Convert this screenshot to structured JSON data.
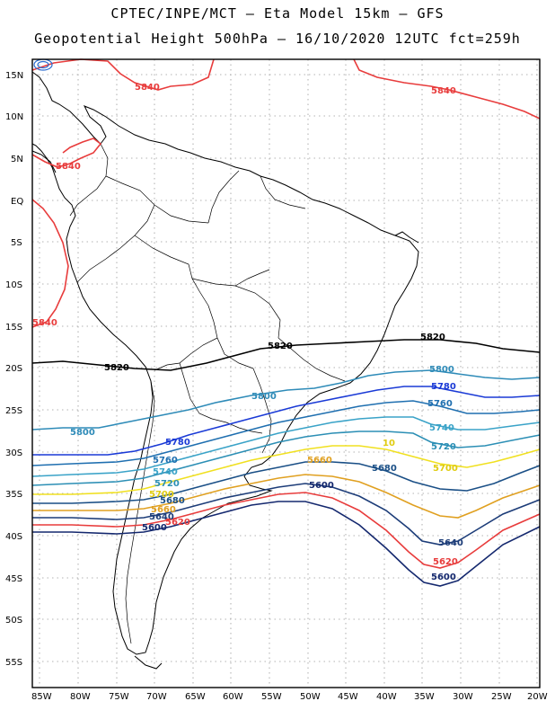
{
  "title_line1": "CPTEC/INPE/MCT –  Eta Model 15km – GFS",
  "title_line2": "Geopotential Height 500hPa – 16/10/2020 12UTC fct=259h",
  "lat_labels": [
    "15N",
    "10N",
    "5N",
    "EQ",
    "5S",
    "10S",
    "15S",
    "20S",
    "25S",
    "30S",
    "35S",
    "40S",
    "45S",
    "50S",
    "55S"
  ],
  "lon_labels": [
    "85W",
    "80W",
    "75W",
    "70W",
    "65W",
    "60W",
    "55W",
    "50W",
    "45W",
    "40W",
    "35W",
    "30W",
    "25W",
    "20W"
  ],
  "colors": {
    "c5840": "#e83c3c",
    "c5820": "#000000",
    "c5800": "#2e8bb8",
    "c5780": "#1a3ad6",
    "c5760": "#1f6fb0",
    "c5740": "#3aa3c8",
    "c5720": "#2c8fb5",
    "c5700": "#f0e020",
    "c5680": "#1a4f86",
    "c5660": "#e0a020",
    "c5640": "#1c3c78",
    "c5620": "#e83c3c",
    "c5600": "#14286e"
  },
  "contour_labels": [
    {
      "id": "l5840a",
      "text": "5840",
      "color": "#e83c3c"
    },
    {
      "id": "l5840b",
      "text": "5840",
      "color": "#e83c3c"
    },
    {
      "id": "l5840c",
      "text": "5840",
      "color": "#e83c3c"
    },
    {
      "id": "l5840d",
      "text": "5840",
      "color": "#e83c3c"
    },
    {
      "id": "l5820a",
      "text": "5820",
      "color": "#000000"
    },
    {
      "id": "l5820b",
      "text": "5820",
      "color": "#000000"
    },
    {
      "id": "l5820c",
      "text": "5820",
      "color": "#000000"
    },
    {
      "id": "l5800a",
      "text": "5800",
      "color": "#2e8bb8"
    },
    {
      "id": "l5800b",
      "text": "5800",
      "color": "#2e8bb8"
    },
    {
      "id": "l5800c",
      "text": "5800",
      "color": "#2e8bb8"
    },
    {
      "id": "l5780a",
      "text": "5780",
      "color": "#1a3ad6"
    },
    {
      "id": "l5780b",
      "text": "5780",
      "color": "#1a3ad6"
    },
    {
      "id": "l5760a",
      "text": "5760",
      "color": "#1f6fb0"
    },
    {
      "id": "l5760b",
      "text": "5760",
      "color": "#1f6fb0"
    },
    {
      "id": "l5740a",
      "text": "5740",
      "color": "#3aa3c8"
    },
    {
      "id": "l5740b",
      "text": "5740",
      "color": "#3aa3c8"
    },
    {
      "id": "l5720a",
      "text": "5720",
      "color": "#2c8fb5"
    },
    {
      "id": "l5720b",
      "text": "5720",
      "color": "#2c8fb5"
    },
    {
      "id": "l5700a",
      "text": "5700",
      "color": "#e0cc10"
    },
    {
      "id": "l5700b",
      "text": "5700",
      "color": "#e0cc10"
    },
    {
      "id": "l5680a",
      "text": "5680",
      "color": "#1a4f86"
    },
    {
      "id": "l5680b",
      "text": "5680",
      "color": "#1a4f86"
    },
    {
      "id": "l5660a",
      "text": "5660",
      "color": "#e0a020"
    },
    {
      "id": "l5660b",
      "text": "5660",
      "color": "#e0a020"
    },
    {
      "id": "l5640a",
      "text": "5640",
      "color": "#1c3c78"
    },
    {
      "id": "l5640b",
      "text": "5640",
      "color": "#1c3c78"
    },
    {
      "id": "l5620a",
      "text": "5620",
      "color": "#e83c3c"
    },
    {
      "id": "l5620b",
      "text": "5620",
      "color": "#e83c3c"
    },
    {
      "id": "l5600a",
      "text": "5600",
      "color": "#14286e"
    },
    {
      "id": "l5600b",
      "text": "5600",
      "color": "#14286e"
    },
    {
      "id": "l5600c",
      "text": "5600",
      "color": "#14286e"
    }
  ],
  "small_marker": "10"
}
